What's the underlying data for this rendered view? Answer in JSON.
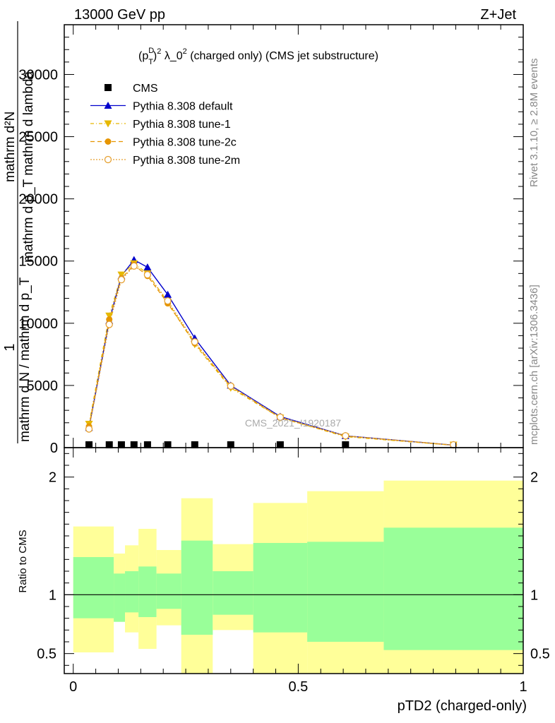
{
  "header": {
    "left": "13000 GeV pp",
    "right": "Z+Jet"
  },
  "plot_title": {
    "p": "(p",
    "sup_d": "D",
    "sub_t": "T",
    "close": ")",
    "sup_2": "2",
    "lambda": " λ_0",
    "sup_2b": "2",
    "rest": " (charged only) (CMS jet substructure)"
  },
  "side_labels": {
    "rivet": "Rivet 3.1.10, ≥ 2.8M events",
    "mcplots": "mcplots.cern.ch [arXiv:1306.3436]"
  },
  "watermark": "CMS_2021_I1920187",
  "ylabel_main": {
    "one": "1",
    "denominator": "mathrm d N / mathrm d p_T",
    "numerator": "mathrm d²N",
    "numerator_rest": "mathrm d p_T mathrm d lambda"
  },
  "ylabel_ratio": "Ratio to CMS",
  "xlabel": "pTD2 (charged-only)",
  "colors": {
    "cms": "#000000",
    "default": "#0000cc",
    "tune1": "#e6b800",
    "tune2c": "#e69500",
    "tune2m": "#e6a030",
    "band_inner": "#99ff99",
    "band_outer": "#ffff99"
  },
  "chart_data": {
    "type": "line",
    "x_range": [
      -0.02,
      1.0
    ],
    "main_y_range": [
      0,
      34000
    ],
    "ratio_y_range": [
      0.33,
      2.25
    ],
    "x_ticks": [
      0,
      0.5,
      1
    ],
    "x_tick_labels": [
      "0",
      "0.5",
      "1"
    ],
    "main_y_ticks": [
      0,
      5000,
      10000,
      15000,
      20000,
      25000,
      30000
    ],
    "main_y_tick_labels": [
      "0",
      "5000",
      "10000",
      "15000",
      "20000",
      "25000",
      "30000"
    ],
    "ratio_y_ticks": [
      0.5,
      1,
      2
    ],
    "ratio_y_tick_labels": [
      "0.5",
      "1",
      "2"
    ],
    "legend_position": "top-left",
    "series": [
      {
        "name": "CMS",
        "marker": "square",
        "x": [
          0.035,
          0.08,
          0.107,
          0.135,
          0.165,
          0.21,
          0.27,
          0.35,
          0.46,
          0.605
        ],
        "y": [
          30,
          30,
          30,
          30,
          30,
          30,
          30,
          30,
          30,
          30
        ]
      },
      {
        "name": "Pythia 8.308 default",
        "marker": "triangle-up",
        "x": [
          0.035,
          0.08,
          0.107,
          0.135,
          0.165,
          0.21,
          0.27,
          0.35,
          0.46,
          0.605,
          0.845
        ],
        "y": [
          1600,
          10200,
          13800,
          15100,
          14500,
          12300,
          8800,
          5000,
          2500,
          950,
          200
        ]
      },
      {
        "name": "Pythia 8.308 tune-1",
        "marker": "triangle-down",
        "x": [
          0.035,
          0.08,
          0.107,
          0.135,
          0.165,
          0.21,
          0.27,
          0.35,
          0.46,
          0.605,
          0.845
        ],
        "y": [
          1900,
          10600,
          13900,
          14800,
          14000,
          11700,
          8300,
          4800,
          2400,
          880,
          190
        ]
      },
      {
        "name": "Pythia 8.308 tune-2c",
        "marker": "circle",
        "x": [
          0.035,
          0.08,
          0.107,
          0.135,
          0.165,
          0.21,
          0.27,
          0.35,
          0.46,
          0.605,
          0.845
        ],
        "y": [
          1700,
          10300,
          13600,
          14700,
          13800,
          11600,
          8400,
          4900,
          2400,
          930,
          200
        ]
      },
      {
        "name": "Pythia 8.308 tune-2m",
        "marker": "circle-open",
        "x": [
          0.035,
          0.08,
          0.107,
          0.135,
          0.165,
          0.21,
          0.27,
          0.35,
          0.46,
          0.605,
          0.845
        ],
        "y": [
          1500,
          9900,
          13500,
          14600,
          13900,
          11800,
          8500,
          4950,
          2450,
          950,
          210
        ]
      }
    ],
    "ratio_bands": [
      {
        "x0": 0.0,
        "x1": 0.09,
        "in_lo": 0.8,
        "in_hi": 1.32,
        "out_lo": 0.51,
        "out_hi": 1.58
      },
      {
        "x0": 0.09,
        "x1": 0.115,
        "in_lo": 0.77,
        "in_hi": 1.18,
        "out_lo": 0.77,
        "out_hi": 1.35
      },
      {
        "x0": 0.115,
        "x1": 0.145,
        "in_lo": 0.85,
        "in_hi": 1.2,
        "out_lo": 0.68,
        "out_hi": 1.42
      },
      {
        "x0": 0.145,
        "x1": 0.185,
        "in_lo": 0.81,
        "in_hi": 1.24,
        "out_lo": 0.54,
        "out_hi": 1.56
      },
      {
        "x0": 0.185,
        "x1": 0.24,
        "in_lo": 0.88,
        "in_hi": 1.18,
        "out_lo": 0.74,
        "out_hi": 1.38
      },
      {
        "x0": 0.24,
        "x1": 0.31,
        "in_lo": 0.66,
        "in_hi": 1.46,
        "out_lo": 0.33,
        "out_hi": 1.82
      },
      {
        "x0": 0.31,
        "x1": 0.4,
        "in_lo": 0.83,
        "in_hi": 1.2,
        "out_lo": 0.7,
        "out_hi": 1.43
      },
      {
        "x0": 0.4,
        "x1": 0.52,
        "in_lo": 0.68,
        "in_hi": 1.44,
        "out_lo": 0.33,
        "out_hi": 1.78
      },
      {
        "x0": 0.52,
        "x1": 0.69,
        "in_lo": 0.6,
        "in_hi": 1.45,
        "out_lo": 0.33,
        "out_hi": 1.88
      },
      {
        "x0": 0.69,
        "x1": 1.0,
        "in_lo": 0.53,
        "in_hi": 1.57,
        "out_lo": 0.33,
        "out_hi": 1.97
      }
    ]
  }
}
